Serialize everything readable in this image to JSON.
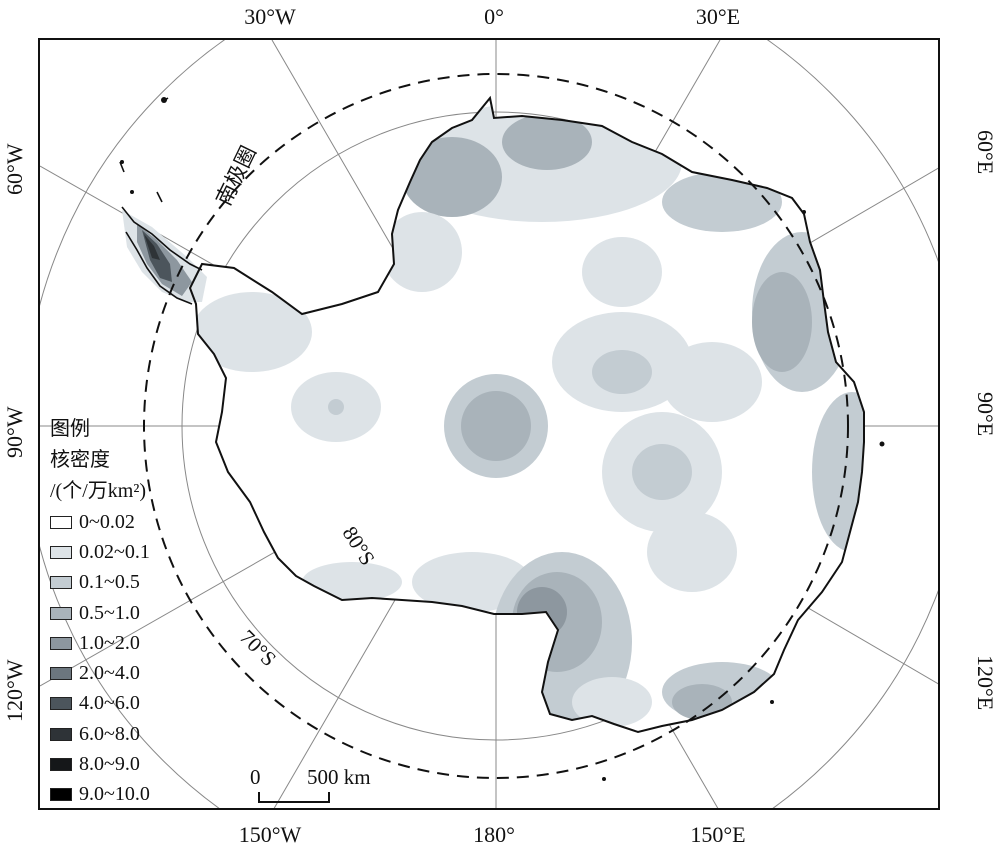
{
  "map": {
    "lon_labels_top": [
      "30°W",
      "0°",
      "30°E"
    ],
    "lon_labels_bottom": [
      "150°W",
      "180°",
      "150°E"
    ],
    "lon_labels_left": [
      "60°W",
      "90°W",
      "120°W"
    ],
    "lon_labels_right": [
      "60°E",
      "90°E",
      "120°E"
    ],
    "lat_labels": [
      "80°S",
      "70°S"
    ],
    "antarctic_circle_label": "南极圈"
  },
  "legend": {
    "title_line1": "图例",
    "title_line2": "核密度",
    "title_line3": "/(个/万km²)",
    "items": [
      {
        "label": "0~0.02",
        "color": "#ffffff"
      },
      {
        "label": "0.02~0.1",
        "color": "#dde3e7"
      },
      {
        "label": "0.1~0.5",
        "color": "#c3ccd2"
      },
      {
        "label": "0.5~1.0",
        "color": "#a9b3ba"
      },
      {
        "label": "1.0~2.0",
        "color": "#8d979f"
      },
      {
        "label": "2.0~4.0",
        "color": "#6c767e"
      },
      {
        "label": "4.0~6.0",
        "color": "#4c555c"
      },
      {
        "label": "6.0~8.0",
        "color": "#2e3337"
      },
      {
        "label": "8.0~9.0",
        "color": "#151719"
      },
      {
        "label": "9.0~10.0",
        "color": "#000000"
      }
    ]
  },
  "scale_bar": {
    "start_label": "0",
    "end_label": "500 km"
  }
}
